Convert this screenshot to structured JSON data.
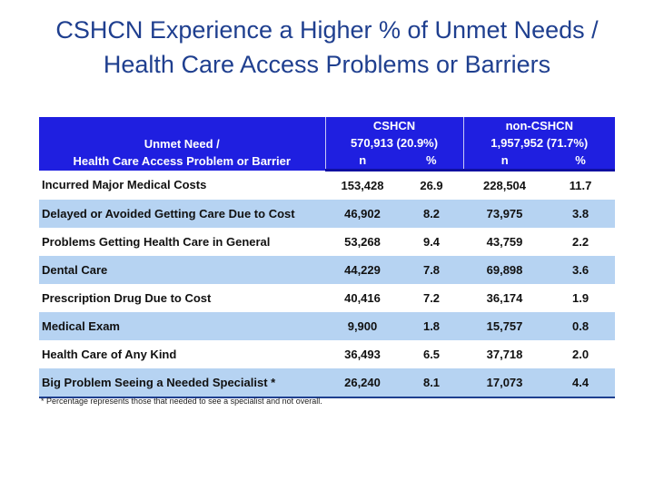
{
  "title": {
    "line1": "CSHCN Experience a Higher % of Unmet Needs /",
    "line2": "Health Care Access Problems or Barriers"
  },
  "table": {
    "row_header": {
      "line1": "Unmet Need /",
      "line2": "Health Care Access Problem or Barrier"
    },
    "groups": [
      {
        "name": "CSHCN",
        "subtitle": "570,913 (20.9%)"
      },
      {
        "name": "non-CSHCN",
        "subtitle": "1,957,952 (71.7%)"
      }
    ],
    "subcols": [
      "n",
      "%",
      "n",
      "%"
    ],
    "rows": [
      {
        "label": "Incurred Major Medical Costs",
        "cshcn_n": "153,428",
        "cshcn_pct": "26.9",
        "non_n": "228,504",
        "non_pct": "11.7"
      },
      {
        "label": "Delayed or Avoided Getting Care Due to Cost",
        "cshcn_n": "46,902",
        "cshcn_pct": "8.2",
        "non_n": "73,975",
        "non_pct": "3.8"
      },
      {
        "label": "Problems Getting Health Care in General",
        "cshcn_n": "53,268",
        "cshcn_pct": "9.4",
        "non_n": "43,759",
        "non_pct": "2.2"
      },
      {
        "label": "Dental Care",
        "cshcn_n": "44,229",
        "cshcn_pct": "7.8",
        "non_n": "69,898",
        "non_pct": "3.6"
      },
      {
        "label": "Prescription Drug Due to Cost",
        "cshcn_n": "40,416",
        "cshcn_pct": "7.2",
        "non_n": "36,174",
        "non_pct": "1.9"
      },
      {
        "label": "Medical Exam",
        "cshcn_n": "9,900",
        "cshcn_pct": "1.8",
        "non_n": "15,757",
        "non_pct": "0.8"
      },
      {
        "label": "Health Care of Any Kind",
        "cshcn_n": "36,493",
        "cshcn_pct": "6.5",
        "non_n": "37,718",
        "non_pct": "2.0"
      },
      {
        "label": "Big Problem Seeing a Needed Specialist *",
        "cshcn_n": "26,240",
        "cshcn_pct": "8.1",
        "non_n": "17,073",
        "non_pct": "4.4"
      }
    ]
  },
  "footnote": "* Percentage represents those that needed to see a specialist and not overall.",
  "colors": {
    "header_bg": "#1f1fe0",
    "stripe_bg": "#b6d3f2",
    "title_text": "#1f3f8f"
  }
}
